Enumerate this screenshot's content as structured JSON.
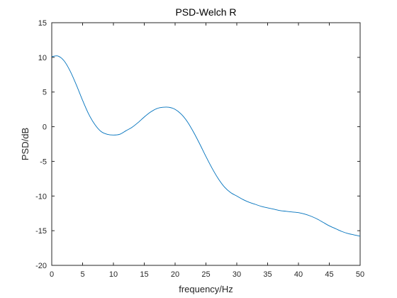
{
  "chart_data": {
    "type": "line",
    "title": "PSD-Welch R",
    "xlabel": "frequency/Hz",
    "ylabel": "PSD/dB",
    "xlim": [
      0,
      50
    ],
    "ylim": [
      -20,
      15
    ],
    "xticks": [
      0,
      5,
      10,
      15,
      20,
      25,
      30,
      35,
      40,
      45,
      50
    ],
    "yticks": [
      -20,
      -15,
      -10,
      -5,
      0,
      5,
      10,
      15
    ],
    "grid": false,
    "series": [
      {
        "color": "#0072BD",
        "x": [
          0,
          1,
          2,
          3,
          4,
          5,
          6,
          7,
          8,
          9,
          10,
          11,
          12,
          13,
          14,
          15,
          16,
          17,
          18,
          19,
          20,
          21,
          22,
          23,
          24,
          25,
          26,
          27,
          28,
          29,
          30,
          31,
          32,
          33,
          34,
          35,
          36,
          37,
          38,
          39,
          40,
          41,
          42,
          43,
          44,
          45,
          46,
          47,
          48,
          49,
          50
        ],
        "y": [
          10.1,
          10.2,
          9.5,
          8.0,
          6.0,
          3.8,
          1.8,
          0.3,
          -0.7,
          -1.1,
          -1.2,
          -1.1,
          -0.6,
          -0.1,
          0.6,
          1.4,
          2.1,
          2.6,
          2.8,
          2.8,
          2.5,
          1.8,
          0.7,
          -0.8,
          -2.5,
          -4.3,
          -6.0,
          -7.5,
          -8.7,
          -9.5,
          -10.0,
          -10.5,
          -10.9,
          -11.2,
          -11.5,
          -11.7,
          -11.9,
          -12.1,
          -12.2,
          -12.3,
          -12.4,
          -12.6,
          -12.9,
          -13.3,
          -13.8,
          -14.3,
          -14.7,
          -15.1,
          -15.4,
          -15.6,
          -15.8
        ]
      }
    ]
  }
}
